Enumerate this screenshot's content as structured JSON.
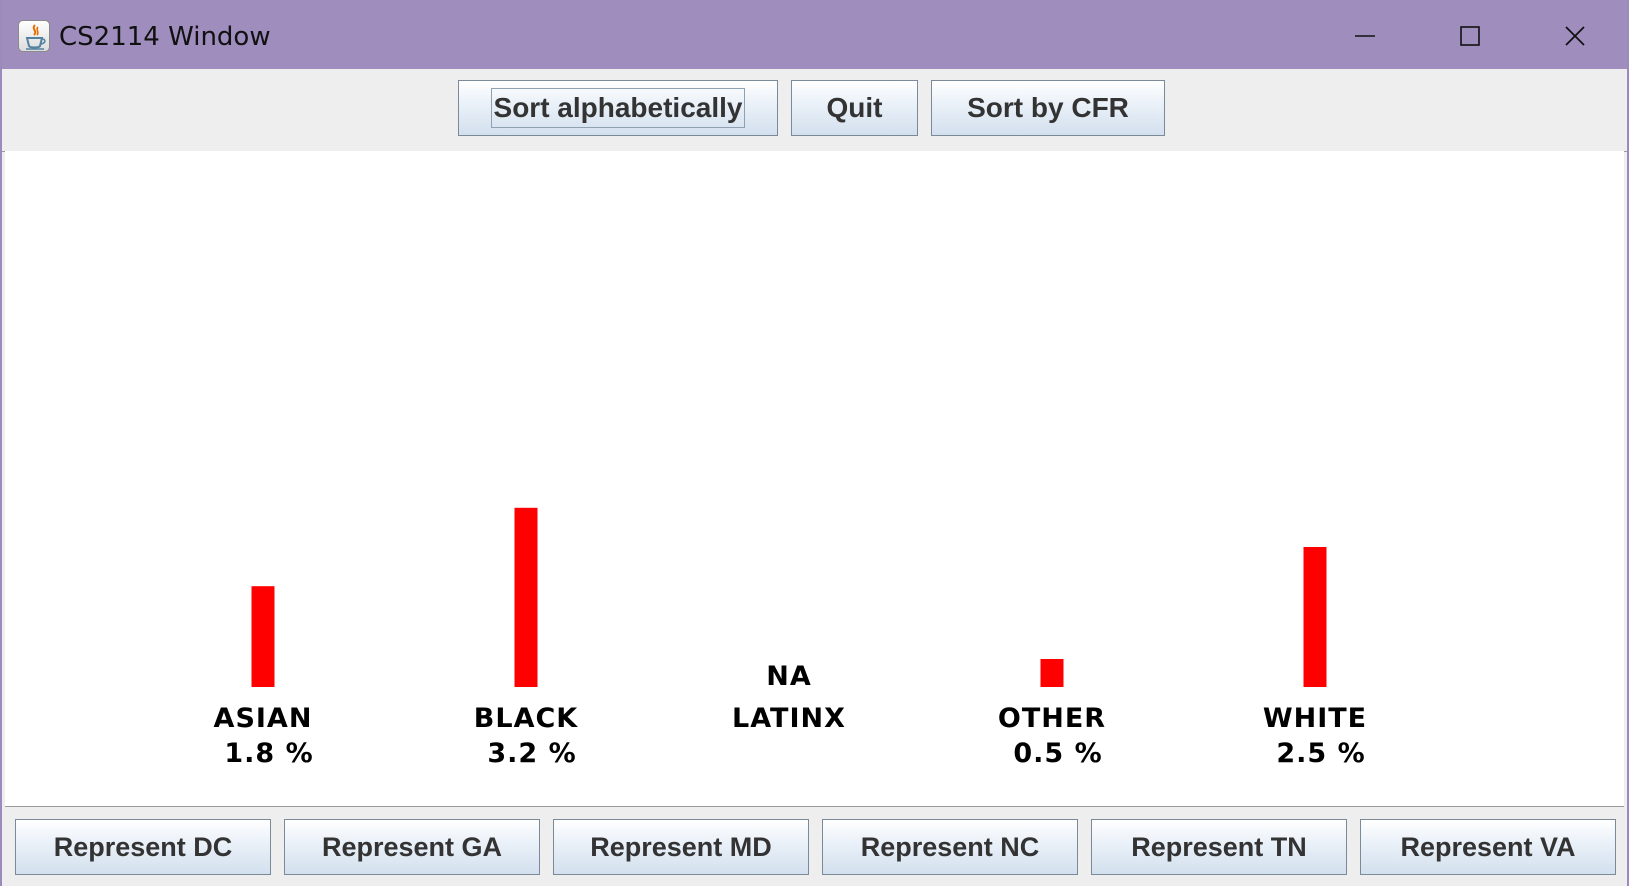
{
  "window": {
    "title": "CS2114 Window",
    "app_icon": "java-cup-icon",
    "controls": [
      "minimize-icon",
      "maximize-icon",
      "close-icon"
    ]
  },
  "toolbar": {
    "sort_alpha_label": "Sort alphabetically",
    "quit_label": "Quit",
    "sort_cfr_label": "Sort by CFR"
  },
  "chart_data": {
    "type": "bar",
    "title": "",
    "xlabel": "",
    "ylabel": "",
    "bar_color": "#ff0000",
    "categories": [
      "ASIAN",
      "BLACK",
      "LATINX",
      "OTHER",
      "WHITE"
    ],
    "values": [
      1.8,
      3.2,
      null,
      0.5,
      2.5
    ],
    "value_labels": [
      "1.8 %",
      "3.2 %",
      "",
      "0.5 %",
      "2.5 %"
    ],
    "missing_label": "NA"
  },
  "bottom_buttons": [
    {
      "label": "Represent DC"
    },
    {
      "label": "Represent GA"
    },
    {
      "label": "Represent MD"
    },
    {
      "label": "Represent NC"
    },
    {
      "label": "Represent TN"
    },
    {
      "label": "Represent VA"
    }
  ]
}
